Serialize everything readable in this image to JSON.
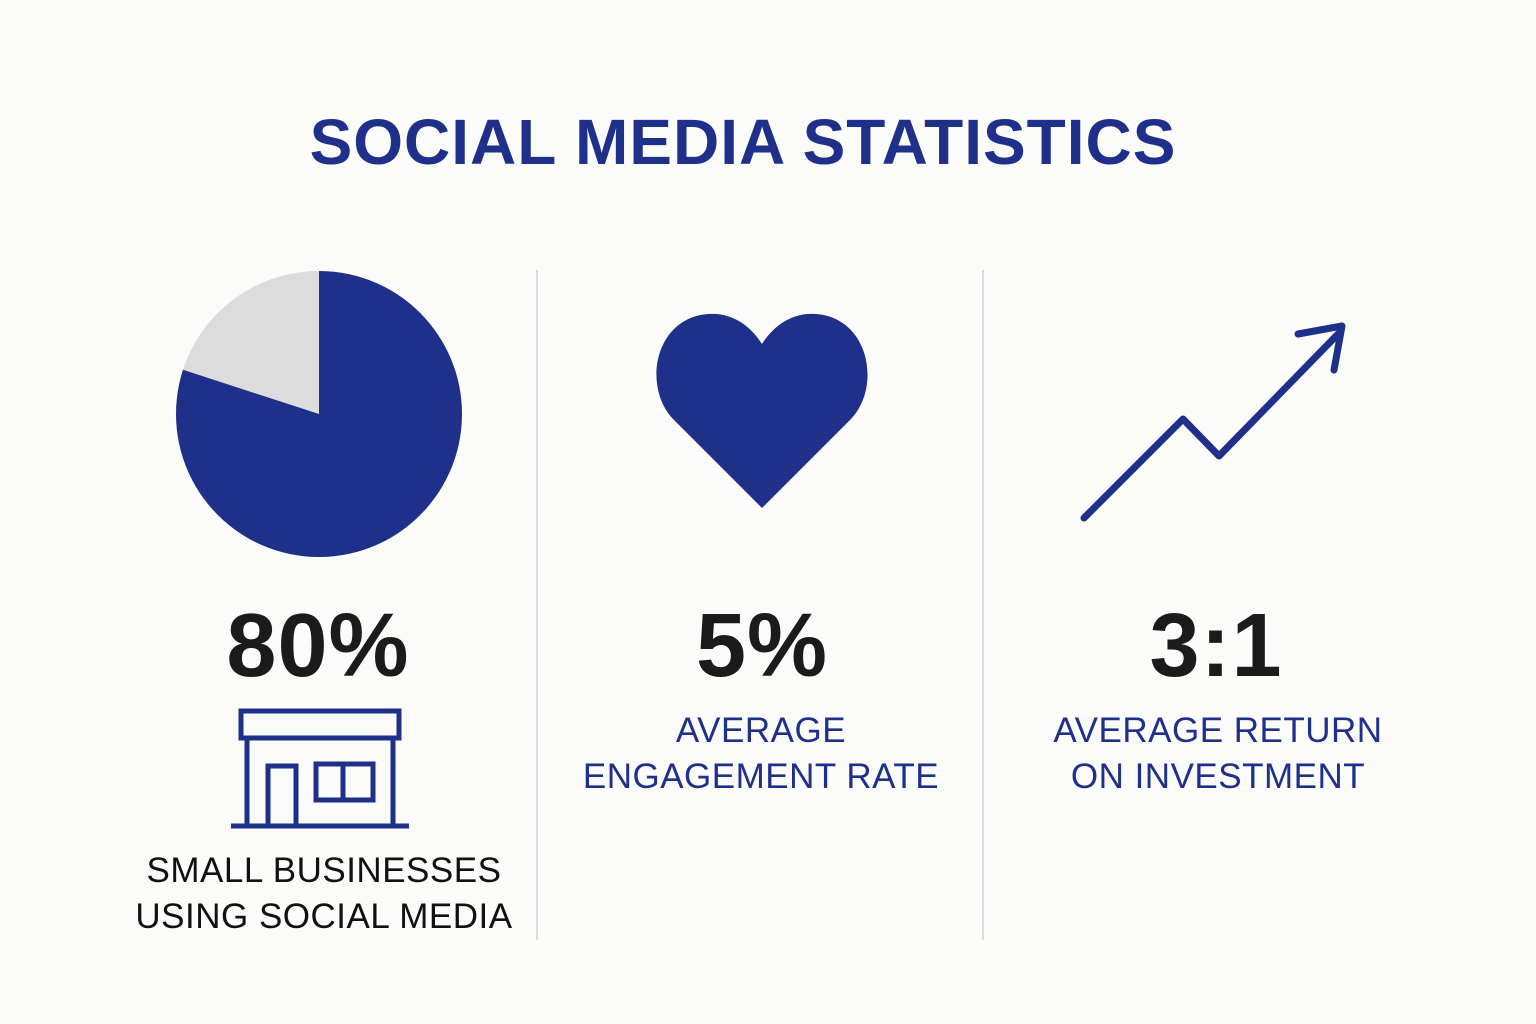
{
  "title": "SOCIAL MEDIA STATISTICS",
  "colors": {
    "primary": "#1f308a",
    "secondary": "#dcdcdc",
    "text": "#1b1b1b",
    "background": "#fbfbfa"
  },
  "stats": [
    {
      "icon": "pie-chart-icon",
      "value": "80%",
      "percent": 80,
      "secondary_icon": "storefront-icon",
      "label_line1": "SMALL BUSINESSES",
      "label_line2": "USING SOCIAL MEDIA"
    },
    {
      "icon": "heart-icon",
      "value": "5%",
      "label_line1": "AVERAGE",
      "label_line2": "ENGAGEMENT RATE"
    },
    {
      "icon": "trend-up-arrow-icon",
      "value": "3:1",
      "label_line1": "AVERAGE RETURN",
      "label_line2": "ON INVESTMENT"
    }
  ]
}
